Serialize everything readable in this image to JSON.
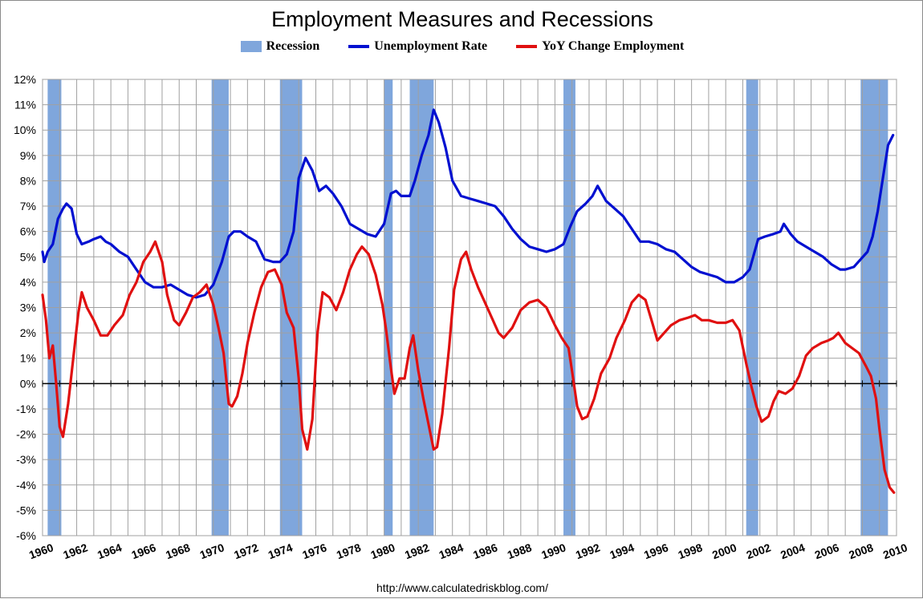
{
  "chart_data": {
    "type": "line",
    "title": "Employment Measures and Recessions",
    "source": "http://www.calculatedriskblog.com/",
    "xlim": [
      1960,
      2010
    ],
    "ylim": [
      -6,
      12
    ],
    "grid": true,
    "legend_position": "top",
    "x_tick_labels": [
      "1960",
      "1962",
      "1964",
      "1966",
      "1968",
      "1970",
      "1972",
      "1974",
      "1976",
      "1978",
      "1980",
      "1982",
      "1984",
      "1986",
      "1988",
      "1990",
      "1992",
      "1994",
      "1996",
      "1998",
      "2000",
      "2002",
      "2004",
      "2006",
      "2008",
      "2010"
    ],
    "y_tick_labels": [
      "12%",
      "11%",
      "10%",
      "9%",
      "8%",
      "7%",
      "6%",
      "5%",
      "4%",
      "3%",
      "2%",
      "1%",
      "0%",
      "-1%",
      "-2%",
      "-3%",
      "-4%",
      "-5%",
      "-6%"
    ],
    "legend": [
      {
        "name": "Recession",
        "kind": "band",
        "color": "#7fa6dc"
      },
      {
        "name": "Unemployment Rate",
        "kind": "line",
        "color": "#0010d0"
      },
      {
        "name": "YoY Change Employment",
        "kind": "line",
        "color": "#e01010"
      }
    ],
    "recessions": [
      [
        1960.3,
        1961.1
      ],
      [
        1969.9,
        1970.9
      ],
      [
        1973.9,
        1975.2
      ],
      [
        1980.0,
        1980.5
      ],
      [
        1981.5,
        1982.9
      ],
      [
        1990.5,
        1991.2
      ],
      [
        2001.2,
        2001.9
      ],
      [
        2007.9,
        2009.5
      ]
    ],
    "series": [
      {
        "name": "Unemployment Rate",
        "color": "#0010d0",
        "points": [
          [
            1960.0,
            5.2
          ],
          [
            1960.1,
            4.8
          ],
          [
            1960.3,
            5.2
          ],
          [
            1960.6,
            5.5
          ],
          [
            1960.9,
            6.5
          ],
          [
            1961.2,
            6.9
          ],
          [
            1961.4,
            7.1
          ],
          [
            1961.7,
            6.9
          ],
          [
            1962.0,
            5.9
          ],
          [
            1962.3,
            5.5
          ],
          [
            1962.7,
            5.6
          ],
          [
            1963.0,
            5.7
          ],
          [
            1963.4,
            5.8
          ],
          [
            1963.7,
            5.6
          ],
          [
            1964.0,
            5.5
          ],
          [
            1964.5,
            5.2
          ],
          [
            1965.0,
            5.0
          ],
          [
            1965.5,
            4.5
          ],
          [
            1966.0,
            4.0
          ],
          [
            1966.5,
            3.8
          ],
          [
            1967.0,
            3.8
          ],
          [
            1967.5,
            3.9
          ],
          [
            1968.0,
            3.7
          ],
          [
            1968.5,
            3.5
          ],
          [
            1969.0,
            3.4
          ],
          [
            1969.5,
            3.5
          ],
          [
            1970.0,
            3.9
          ],
          [
            1970.5,
            4.8
          ],
          [
            1970.9,
            5.8
          ],
          [
            1971.2,
            6.0
          ],
          [
            1971.6,
            6.0
          ],
          [
            1972.0,
            5.8
          ],
          [
            1972.5,
            5.6
          ],
          [
            1973.0,
            4.9
          ],
          [
            1973.5,
            4.8
          ],
          [
            1973.9,
            4.8
          ],
          [
            1974.3,
            5.1
          ],
          [
            1974.7,
            6.0
          ],
          [
            1975.0,
            8.1
          ],
          [
            1975.4,
            8.9
          ],
          [
            1975.8,
            8.4
          ],
          [
            1976.2,
            7.6
          ],
          [
            1976.6,
            7.8
          ],
          [
            1977.0,
            7.5
          ],
          [
            1977.5,
            7.0
          ],
          [
            1978.0,
            6.3
          ],
          [
            1978.5,
            6.1
          ],
          [
            1979.0,
            5.9
          ],
          [
            1979.5,
            5.8
          ],
          [
            1980.0,
            6.3
          ],
          [
            1980.4,
            7.5
          ],
          [
            1980.7,
            7.6
          ],
          [
            1981.0,
            7.4
          ],
          [
            1981.5,
            7.4
          ],
          [
            1981.8,
            8.0
          ],
          [
            1982.2,
            9.0
          ],
          [
            1982.6,
            9.8
          ],
          [
            1982.9,
            10.8
          ],
          [
            1983.2,
            10.3
          ],
          [
            1983.6,
            9.3
          ],
          [
            1984.0,
            8.0
          ],
          [
            1984.5,
            7.4
          ],
          [
            1985.0,
            7.3
          ],
          [
            1985.5,
            7.2
          ],
          [
            1986.0,
            7.1
          ],
          [
            1986.5,
            7.0
          ],
          [
            1987.0,
            6.6
          ],
          [
            1987.5,
            6.1
          ],
          [
            1988.0,
            5.7
          ],
          [
            1988.5,
            5.4
          ],
          [
            1989.0,
            5.3
          ],
          [
            1989.5,
            5.2
          ],
          [
            1990.0,
            5.3
          ],
          [
            1990.5,
            5.5
          ],
          [
            1990.9,
            6.2
          ],
          [
            1991.3,
            6.8
          ],
          [
            1991.8,
            7.1
          ],
          [
            1992.2,
            7.4
          ],
          [
            1992.5,
            7.8
          ],
          [
            1993.0,
            7.2
          ],
          [
            1993.5,
            6.9
          ],
          [
            1994.0,
            6.6
          ],
          [
            1994.5,
            6.1
          ],
          [
            1995.0,
            5.6
          ],
          [
            1995.5,
            5.6
          ],
          [
            1996.0,
            5.5
          ],
          [
            1996.5,
            5.3
          ],
          [
            1997.0,
            5.2
          ],
          [
            1997.5,
            4.9
          ],
          [
            1998.0,
            4.6
          ],
          [
            1998.5,
            4.4
          ],
          [
            1999.0,
            4.3
          ],
          [
            1999.5,
            4.2
          ],
          [
            2000.0,
            4.0
          ],
          [
            2000.5,
            4.0
          ],
          [
            2001.0,
            4.2
          ],
          [
            2001.4,
            4.5
          ],
          [
            2001.9,
            5.7
          ],
          [
            2002.3,
            5.8
          ],
          [
            2002.8,
            5.9
          ],
          [
            2003.2,
            6.0
          ],
          [
            2003.4,
            6.3
          ],
          [
            2003.8,
            5.9
          ],
          [
            2004.2,
            5.6
          ],
          [
            2004.7,
            5.4
          ],
          [
            2005.2,
            5.2
          ],
          [
            2005.7,
            5.0
          ],
          [
            2006.2,
            4.7
          ],
          [
            2006.7,
            4.5
          ],
          [
            2007.0,
            4.5
          ],
          [
            2007.5,
            4.6
          ],
          [
            2007.9,
            4.9
          ],
          [
            2008.3,
            5.2
          ],
          [
            2008.6,
            5.8
          ],
          [
            2008.9,
            6.8
          ],
          [
            2009.2,
            8.1
          ],
          [
            2009.5,
            9.4
          ],
          [
            2009.8,
            9.8
          ]
        ]
      },
      {
        "name": "YoY Change Employment",
        "color": "#e01010",
        "points": [
          [
            1960.0,
            3.5
          ],
          [
            1960.2,
            2.5
          ],
          [
            1960.4,
            1.0
          ],
          [
            1960.6,
            1.5
          ],
          [
            1960.8,
            0.0
          ],
          [
            1961.0,
            -1.7
          ],
          [
            1961.2,
            -2.1
          ],
          [
            1961.5,
            -0.8
          ],
          [
            1961.8,
            1.0
          ],
          [
            1962.1,
            2.8
          ],
          [
            1962.3,
            3.6
          ],
          [
            1962.6,
            3.0
          ],
          [
            1963.0,
            2.5
          ],
          [
            1963.4,
            1.9
          ],
          [
            1963.8,
            1.9
          ],
          [
            1964.2,
            2.3
          ],
          [
            1964.7,
            2.7
          ],
          [
            1965.1,
            3.5
          ],
          [
            1965.5,
            4.0
          ],
          [
            1965.9,
            4.8
          ],
          [
            1966.3,
            5.2
          ],
          [
            1966.6,
            5.6
          ],
          [
            1967.0,
            4.8
          ],
          [
            1967.3,
            3.5
          ],
          [
            1967.7,
            2.5
          ],
          [
            1968.0,
            2.3
          ],
          [
            1968.4,
            2.8
          ],
          [
            1968.8,
            3.4
          ],
          [
            1969.2,
            3.6
          ],
          [
            1969.6,
            3.9
          ],
          [
            1970.0,
            3.1
          ],
          [
            1970.3,
            2.2
          ],
          [
            1970.6,
            1.2
          ],
          [
            1970.9,
            -0.8
          ],
          [
            1971.1,
            -0.9
          ],
          [
            1971.4,
            -0.5
          ],
          [
            1971.7,
            0.4
          ],
          [
            1972.0,
            1.6
          ],
          [
            1972.4,
            2.8
          ],
          [
            1972.8,
            3.8
          ],
          [
            1973.2,
            4.4
          ],
          [
            1973.6,
            4.5
          ],
          [
            1974.0,
            3.9
          ],
          [
            1974.3,
            2.8
          ],
          [
            1974.7,
            2.2
          ],
          [
            1975.0,
            0.2
          ],
          [
            1975.2,
            -1.8
          ],
          [
            1975.5,
            -2.6
          ],
          [
            1975.8,
            -1.4
          ],
          [
            1976.1,
            2.0
          ],
          [
            1976.4,
            3.6
          ],
          [
            1976.8,
            3.4
          ],
          [
            1977.2,
            2.9
          ],
          [
            1977.6,
            3.6
          ],
          [
            1978.0,
            4.5
          ],
          [
            1978.4,
            5.1
          ],
          [
            1978.7,
            5.4
          ],
          [
            1979.1,
            5.1
          ],
          [
            1979.5,
            4.3
          ],
          [
            1979.9,
            3.1
          ],
          [
            1980.1,
            2.2
          ],
          [
            1980.4,
            0.6
          ],
          [
            1980.6,
            -0.4
          ],
          [
            1980.9,
            0.2
          ],
          [
            1981.2,
            0.2
          ],
          [
            1981.5,
            1.4
          ],
          [
            1981.7,
            1.9
          ],
          [
            1982.0,
            0.5
          ],
          [
            1982.3,
            -0.6
          ],
          [
            1982.6,
            -1.6
          ],
          [
            1982.9,
            -2.6
          ],
          [
            1983.1,
            -2.5
          ],
          [
            1983.4,
            -1.2
          ],
          [
            1983.8,
            1.4
          ],
          [
            1984.1,
            3.7
          ],
          [
            1984.5,
            4.9
          ],
          [
            1984.8,
            5.2
          ],
          [
            1985.1,
            4.5
          ],
          [
            1985.5,
            3.8
          ],
          [
            1985.9,
            3.2
          ],
          [
            1986.3,
            2.6
          ],
          [
            1986.7,
            2.0
          ],
          [
            1987.0,
            1.8
          ],
          [
            1987.5,
            2.2
          ],
          [
            1988.0,
            2.9
          ],
          [
            1988.5,
            3.2
          ],
          [
            1989.0,
            3.3
          ],
          [
            1989.5,
            3.0
          ],
          [
            1990.0,
            2.3
          ],
          [
            1990.4,
            1.8
          ],
          [
            1990.8,
            1.4
          ],
          [
            1991.0,
            0.5
          ],
          [
            1991.3,
            -0.9
          ],
          [
            1991.6,
            -1.4
          ],
          [
            1991.9,
            -1.3
          ],
          [
            1992.3,
            -0.6
          ],
          [
            1992.7,
            0.4
          ],
          [
            1993.2,
            1.0
          ],
          [
            1993.6,
            1.8
          ],
          [
            1994.1,
            2.5
          ],
          [
            1994.5,
            3.2
          ],
          [
            1994.9,
            3.5
          ],
          [
            1995.3,
            3.3
          ],
          [
            1995.7,
            2.4
          ],
          [
            1996.0,
            1.7
          ],
          [
            1996.4,
            2.0
          ],
          [
            1996.8,
            2.3
          ],
          [
            1997.3,
            2.5
          ],
          [
            1997.8,
            2.6
          ],
          [
            1998.2,
            2.7
          ],
          [
            1998.6,
            2.5
          ],
          [
            1999.0,
            2.5
          ],
          [
            1999.5,
            2.4
          ],
          [
            2000.0,
            2.4
          ],
          [
            2000.4,
            2.5
          ],
          [
            2000.8,
            2.1
          ],
          [
            2001.2,
            0.8
          ],
          [
            2001.5,
            -0.1
          ],
          [
            2001.8,
            -0.9
          ],
          [
            2002.1,
            -1.5
          ],
          [
            2002.5,
            -1.3
          ],
          [
            2002.8,
            -0.7
          ],
          [
            2003.1,
            -0.3
          ],
          [
            2003.5,
            -0.4
          ],
          [
            2003.9,
            -0.2
          ],
          [
            2004.3,
            0.3
          ],
          [
            2004.7,
            1.1
          ],
          [
            2005.1,
            1.4
          ],
          [
            2005.6,
            1.6
          ],
          [
            2006.0,
            1.7
          ],
          [
            2006.3,
            1.8
          ],
          [
            2006.6,
            2.0
          ],
          [
            2007.0,
            1.6
          ],
          [
            2007.4,
            1.4
          ],
          [
            2007.8,
            1.2
          ],
          [
            2008.2,
            0.7
          ],
          [
            2008.5,
            0.3
          ],
          [
            2008.8,
            -0.6
          ],
          [
            2009.0,
            -1.8
          ],
          [
            2009.3,
            -3.4
          ],
          [
            2009.6,
            -4.1
          ],
          [
            2009.85,
            -4.3
          ]
        ]
      }
    ]
  }
}
